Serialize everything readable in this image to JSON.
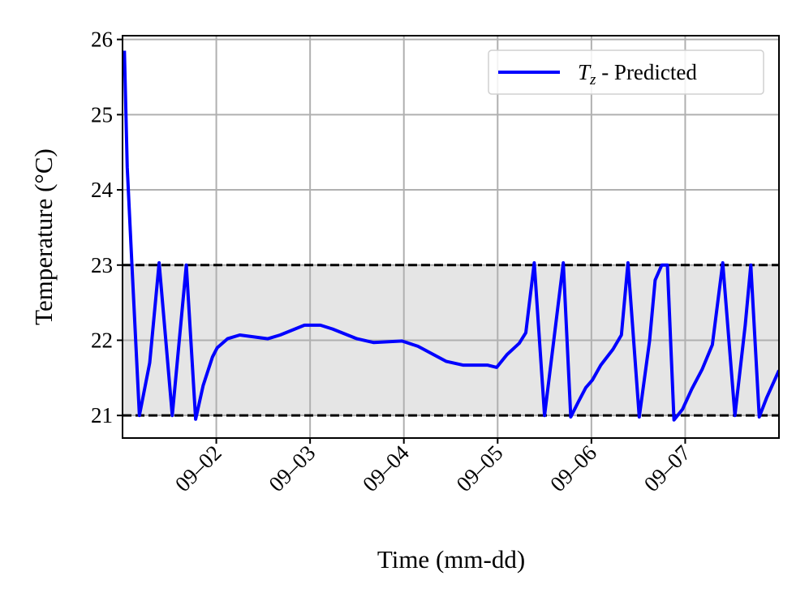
{
  "chart_data": {
    "type": "line",
    "xlabel": "Time (mm-dd)",
    "ylabel": "Temperature (°C)",
    "x": [
      1.02,
      1.05,
      1.1,
      1.18,
      1.29,
      1.39,
      1.53,
      1.68,
      1.78,
      1.86,
      1.96,
      2.01,
      2.12,
      2.25,
      2.55,
      2.68,
      2.94,
      3.11,
      3.24,
      3.5,
      3.68,
      3.98,
      4.15,
      4.45,
      4.63,
      4.89,
      4.99,
      5.1,
      5.23,
      5.3,
      5.39,
      5.5,
      5.7,
      5.78,
      5.86,
      5.94,
      6.01,
      6.1,
      6.23,
      6.32,
      6.39,
      6.51,
      6.62,
      6.68,
      6.75,
      6.81,
      6.88,
      6.97,
      7.07,
      7.18,
      7.29,
      7.4,
      7.53,
      7.64,
      7.7,
      7.79,
      7.87,
      8.0
    ],
    "series": [
      {
        "name": "Tz - Predicted",
        "color": "#0000ff",
        "values": [
          25.85,
          24.3,
          23.0,
          21.0,
          21.7,
          23.03,
          21.0,
          23.0,
          20.95,
          21.4,
          21.78,
          21.9,
          22.02,
          22.07,
          22.02,
          22.07,
          22.2,
          22.2,
          22.15,
          22.02,
          21.97,
          21.99,
          21.92,
          21.72,
          21.67,
          21.67,
          21.64,
          21.81,
          21.96,
          22.1,
          23.03,
          21.0,
          23.03,
          20.98,
          21.18,
          21.37,
          21.47,
          21.67,
          21.88,
          22.07,
          23.03,
          20.98,
          21.99,
          22.8,
          23.0,
          23.0,
          20.94,
          21.08,
          21.35,
          21.61,
          21.94,
          23.03,
          21.0,
          22.2,
          23.0,
          20.98,
          21.24,
          21.6
        ]
      }
    ],
    "reference_band": [
      21,
      23
    ],
    "xlim": [
      1,
      8
    ],
    "ylim": [
      20.7,
      26.05
    ],
    "xticks": [
      {
        "value": 2,
        "label": "09–02"
      },
      {
        "value": 3,
        "label": "09–03"
      },
      {
        "value": 4,
        "label": "09–04"
      },
      {
        "value": 5,
        "label": "09–05"
      },
      {
        "value": 6,
        "label": "09–06"
      },
      {
        "value": 7,
        "label": "09–07"
      }
    ],
    "yticks": [
      21,
      22,
      23,
      24,
      25,
      26
    ],
    "grid": true,
    "legend": "upper right"
  }
}
